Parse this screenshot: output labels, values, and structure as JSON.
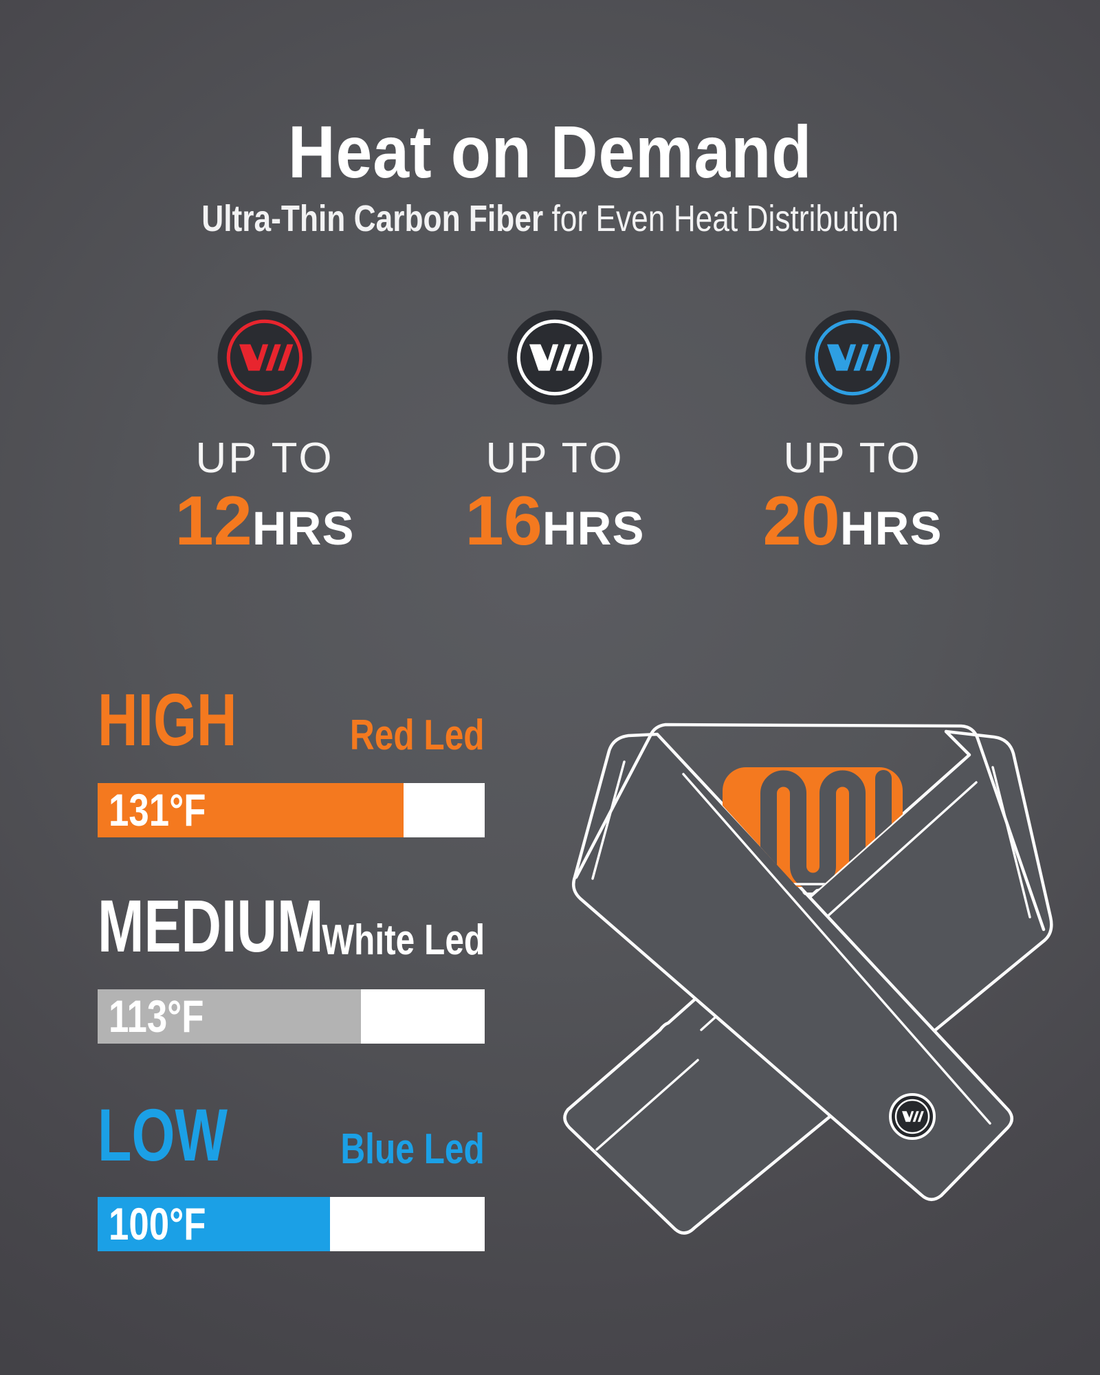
{
  "header": {
    "title": "Heat on Demand",
    "subtitle_bold": "Ultra-Thin Carbon Fiber",
    "subtitle_rest": " for Even Heat Distribution"
  },
  "durations": {
    "up_to_label": "UP TO",
    "unit": "HRS",
    "number_color": "#F4791F",
    "items": [
      {
        "hours": "12",
        "ring_color": "#E8252E"
      },
      {
        "hours": "16",
        "ring_color": "#FFFFFF"
      },
      {
        "hours": "20",
        "ring_color": "#2E9FE3"
      }
    ]
  },
  "heat_levels": {
    "items": [
      {
        "name": "HIGH",
        "led": "Red Led",
        "temp": "131°F",
        "accent": "#F4791F",
        "bar_color": "#F4791F",
        "fill_percent": 79
      },
      {
        "name": "MEDIUM",
        "led": "White Led",
        "temp": "113°F",
        "accent": "#FFFFFF",
        "bar_color": "#B3B3B3",
        "fill_percent": 68
      },
      {
        "name": "LOW",
        "led": "Blue Led",
        "temp": "100°F",
        "accent": "#1BA0E6",
        "bar_color": "#1BA0E6",
        "fill_percent": 60
      }
    ]
  },
  "illustration": {
    "pad_color": "#F4791F",
    "line_color": "#FCFCFC",
    "button_logo": "v-slashes-logo"
  },
  "colors": {
    "background_center": "#5B5C61",
    "background_edge": "#434247",
    "badge_disc": "#2A2C31",
    "white": "#FFFFFF"
  }
}
